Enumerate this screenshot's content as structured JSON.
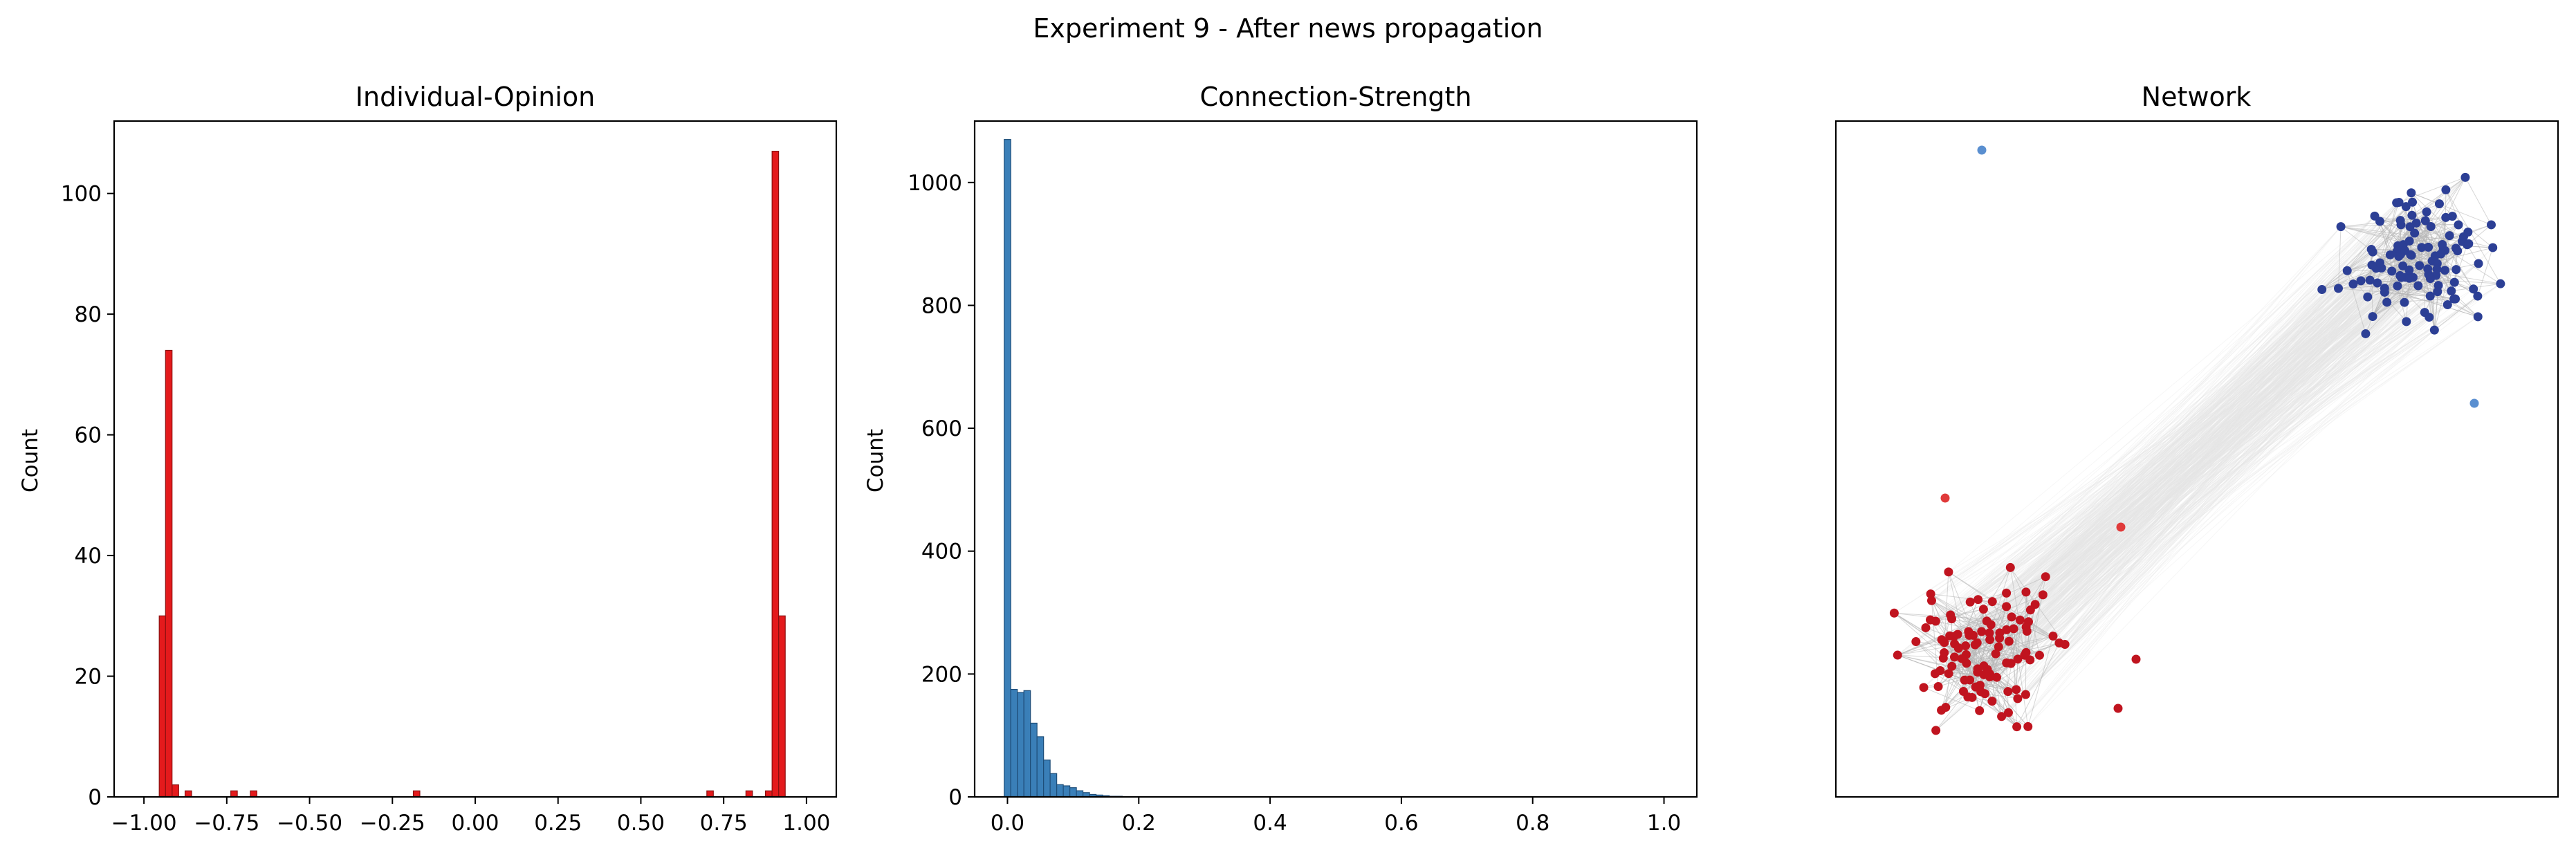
{
  "figure": {
    "title": "Experiment 9 - After news propagation"
  },
  "colors": {
    "opinion_bar": "#e41a1c",
    "opinion_edge": "#8b1010",
    "strength_bar": "#3a7fb8",
    "strength_edge": "#1f4e79",
    "red_node": "#c0141f",
    "blue_node": "#2c3f95",
    "light_blue_node": "#5a8fd0",
    "light_red_node": "#e03a3a",
    "edge_dense": "#b4b4b4",
    "edge_faint": "#e6e6e6"
  },
  "chart_data": [
    {
      "type": "bar",
      "title": "Individual-Opinion",
      "xlabel": "",
      "ylabel": "Count",
      "xlim": [
        -1.09,
        1.09
      ],
      "ylim": [
        0,
        112
      ],
      "xticks": [
        -1.0,
        -0.75,
        -0.5,
        -0.25,
        0.0,
        0.25,
        0.5,
        0.75,
        1.0
      ],
      "xtick_labels": [
        "−1.00",
        "−0.75",
        "−0.50",
        "−0.25",
        "0.00",
        "0.25",
        "0.50",
        "0.75",
        "1.00"
      ],
      "yticks": [
        0,
        20,
        40,
        60,
        80,
        100
      ],
      "ytick_labels": [
        "0",
        "20",
        "40",
        "60",
        "80",
        "100"
      ],
      "bin_width": 0.0197,
      "bins": [
        {
          "x": -0.944,
          "count": 30
        },
        {
          "x": -0.925,
          "count": 74
        },
        {
          "x": -0.905,
          "count": 2
        },
        {
          "x": -0.866,
          "count": 1
        },
        {
          "x": -0.728,
          "count": 1
        },
        {
          "x": -0.669,
          "count": 1
        },
        {
          "x": -0.177,
          "count": 1
        },
        {
          "x": 0.709,
          "count": 1
        },
        {
          "x": 0.827,
          "count": 1
        },
        {
          "x": 0.886,
          "count": 1
        },
        {
          "x": 0.906,
          "count": 107
        },
        {
          "x": 0.926,
          "count": 30
        }
      ],
      "grid": false
    },
    {
      "type": "bar",
      "title": "Connection-Strength",
      "xlabel": "",
      "ylabel": "Count",
      "xlim": [
        -0.05,
        1.05
      ],
      "ylim": [
        0,
        1100
      ],
      "xticks": [
        0.0,
        0.2,
        0.4,
        0.6,
        0.8,
        1.0
      ],
      "xtick_labels": [
        "0.0",
        "0.2",
        "0.4",
        "0.6",
        "0.8",
        "1.0"
      ],
      "yticks": [
        0,
        200,
        400,
        600,
        800,
        1000
      ],
      "ytick_labels": [
        "0",
        "200",
        "400",
        "600",
        "800",
        "1000"
      ],
      "bin_width": 0.01,
      "bins": [
        {
          "x": 0.0,
          "count": 1070
        },
        {
          "x": 0.01,
          "count": 175
        },
        {
          "x": 0.02,
          "count": 170
        },
        {
          "x": 0.03,
          "count": 173
        },
        {
          "x": 0.04,
          "count": 120
        },
        {
          "x": 0.05,
          "count": 98
        },
        {
          "x": 0.06,
          "count": 60
        },
        {
          "x": 0.07,
          "count": 38
        },
        {
          "x": 0.08,
          "count": 20
        },
        {
          "x": 0.09,
          "count": 18
        },
        {
          "x": 0.1,
          "count": 15
        },
        {
          "x": 0.11,
          "count": 10
        },
        {
          "x": 0.12,
          "count": 7
        },
        {
          "x": 0.13,
          "count": 4
        },
        {
          "x": 0.14,
          "count": 3
        },
        {
          "x": 0.15,
          "count": 2
        },
        {
          "x": 0.16,
          "count": 1
        },
        {
          "x": 0.17,
          "count": 1
        }
      ],
      "grid": false
    },
    {
      "type": "network",
      "title": "Network",
      "clusters": [
        {
          "color_key": "blue_node",
          "node_count": 107
        },
        {
          "color_key": "red_node",
          "node_count": 106
        }
      ],
      "outliers": [
        {
          "color_key": "light_blue_node"
        },
        {
          "color_key": "light_blue_node"
        },
        {
          "color_key": "light_red_node"
        },
        {
          "color_key": "light_red_node"
        },
        {
          "color_key": "red_node"
        },
        {
          "color_key": "red_node"
        }
      ],
      "axes_visible": false
    }
  ]
}
